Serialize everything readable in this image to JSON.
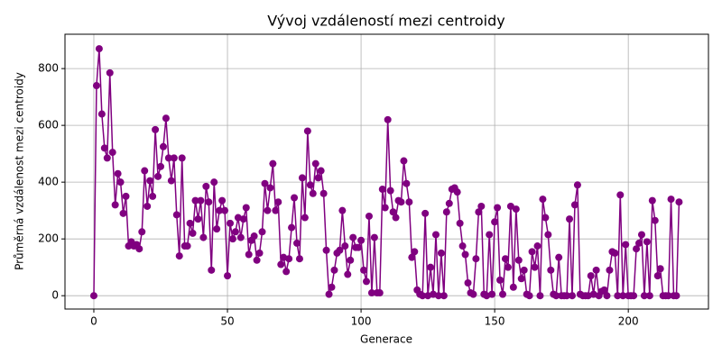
{
  "chart_data": {
    "type": "line",
    "title": "Vývoj vzdáleností mezi centroidy",
    "xlabel": "Generace",
    "ylabel": "Průměrná vzdálenost mezi centroidy",
    "color": "#800080",
    "marker": true,
    "grid": true,
    "x": [
      0,
      1,
      2,
      3,
      4,
      5,
      6,
      7,
      8,
      9,
      10,
      11,
      12,
      13,
      14,
      15,
      16,
      17,
      18,
      19,
      20,
      21,
      22,
      23,
      24,
      25,
      26,
      27,
      28,
      29,
      30,
      31,
      32,
      33,
      34,
      35,
      36,
      37,
      38,
      39,
      40,
      41,
      42,
      43,
      44,
      45,
      46,
      47,
      48,
      49,
      50,
      51,
      52,
      53,
      54,
      55,
      56,
      57,
      58,
      59,
      60,
      61,
      62,
      63,
      64,
      65,
      66,
      67,
      68,
      69,
      70,
      71,
      72,
      73,
      74,
      75,
      76,
      77,
      78,
      79,
      80,
      81,
      82,
      83,
      84,
      85,
      86,
      87,
      88,
      89,
      90,
      91,
      92,
      93,
      94,
      95,
      96,
      97,
      98,
      99,
      100,
      101,
      102,
      103,
      104,
      105,
      106,
      107,
      108,
      109,
      110,
      111,
      112,
      113,
      114,
      115,
      116,
      117,
      118,
      119,
      120,
      121,
      122,
      123,
      124,
      125,
      126,
      127,
      128,
      129,
      130,
      131,
      132,
      133,
      134,
      135,
      136,
      137,
      138,
      139,
      140,
      141,
      142,
      143,
      144,
      145,
      146,
      147,
      148,
      149,
      150,
      151,
      152,
      153,
      154,
      155,
      156,
      157,
      158,
      159,
      160,
      161,
      162,
      163,
      164,
      165,
      166,
      167,
      168,
      169,
      170,
      171,
      172,
      173,
      174,
      175,
      176,
      177,
      178,
      179,
      180,
      181,
      182,
      183,
      184,
      185,
      186,
      187,
      188,
      189,
      190,
      191,
      192,
      193,
      194,
      195,
      196,
      197,
      198,
      199,
      200,
      201,
      202,
      203,
      204,
      205,
      206,
      207,
      208,
      209,
      210,
      211,
      212,
      213,
      214,
      215,
      216,
      217,
      218,
      219
    ],
    "values": [
      0,
      740,
      870,
      640,
      520,
      485,
      785,
      505,
      320,
      430,
      400,
      290,
      350,
      175,
      190,
      175,
      180,
      165,
      225,
      440,
      315,
      405,
      350,
      585,
      420,
      455,
      525,
      625,
      485,
      405,
      485,
      285,
      140,
      485,
      175,
      175,
      255,
      220,
      335,
      270,
      335,
      205,
      385,
      330,
      90,
      400,
      235,
      300,
      335,
      300,
      70,
      255,
      200,
      225,
      275,
      205,
      270,
      310,
      145,
      195,
      210,
      125,
      150,
      225,
      395,
      300,
      380,
      465,
      300,
      330,
      110,
      135,
      85,
      130,
      240,
      345,
      185,
      130,
      415,
      275,
      580,
      390,
      360,
      465,
      415,
      440,
      360,
      160,
      5,
      30,
      90,
      150,
      160,
      300,
      175,
      75,
      125,
      205,
      170,
      170,
      195,
      90,
      50,
      280,
      10,
      205,
      10,
      10,
      375,
      310,
      620,
      370,
      295,
      275,
      335,
      330,
      475,
      395,
      330,
      135,
      155,
      20,
      5,
      0,
      290,
      0,
      100,
      5,
      215,
      0,
      150,
      0,
      295,
      325,
      375,
      380,
      365,
      255,
      175,
      145,
      45,
      10,
      5,
      130,
      295,
      315,
      5,
      0,
      215,
      5,
      260,
      310,
      55,
      5,
      130,
      100,
      315,
      30,
      305,
      125,
      60,
      90,
      5,
      0,
      155,
      100,
      175,
      0,
      340,
      275,
      215,
      90,
      5,
      0,
      135,
      0,
      0,
      0,
      270,
      0,
      320,
      390,
      5,
      0,
      0,
      0,
      70,
      5,
      90,
      0,
      15,
      20,
      0,
      90,
      155,
      150,
      0,
      355,
      0,
      180,
      0,
      0,
      0,
      165,
      185,
      215,
      0,
      190,
      0,
      335,
      265,
      70,
      95,
      0,
      0,
      0,
      340,
      0,
      0,
      330
    ],
    "xlim": [
      -10.8,
      230
    ],
    "ylim": [
      -47,
      921
    ],
    "xticks": [
      0,
      50,
      100,
      150,
      200
    ],
    "yticks": [
      0,
      200,
      400,
      600,
      800
    ]
  }
}
